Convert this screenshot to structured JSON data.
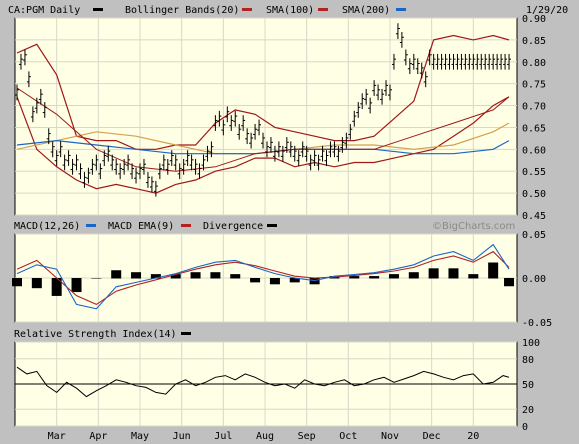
{
  "header": {
    "symbol_label": "CA:PGM Daily",
    "date_label": "1/29/20",
    "legend": [
      {
        "name": "Bollinger Bands(20)",
        "color": "#b22222"
      },
      {
        "name": "SMA(100)",
        "color": "#b22222"
      },
      {
        "name": "SMA(200)",
        "color": "#d4a04a"
      }
    ],
    "legend_extra_swatch": "#1a66c8"
  },
  "watermark": "©BigCharts.com",
  "colors": {
    "panel_bg": "#ffffe6",
    "grid": "#d8d8c8",
    "price": "#000000",
    "bollinger": "#a01818",
    "sma100": "#a01818",
    "sma200": "#d4a04a",
    "blue": "#1a66c8",
    "macd": "#1a66c8",
    "macd_ema": "#b22222",
    "divergence": "#000000",
    "rsi": "#000000"
  },
  "chart_data": [
    {
      "type": "line",
      "panel": "price",
      "x_labels": [
        "Mar",
        "Apr",
        "May",
        "Jun",
        "Jul",
        "Aug",
        "Sep",
        "Oct",
        "Nov",
        "Dec",
        "20"
      ],
      "y_ticks": [
        0.45,
        0.5,
        0.55,
        0.6,
        0.65,
        0.7,
        0.75,
        0.8,
        0.85,
        0.9
      ],
      "ylim": [
        0.45,
        0.9
      ],
      "grid": true,
      "series": [
        {
          "name": "",
          "style": "ohlc",
          "x": [
            0,
            4,
            8,
            12,
            16,
            20,
            24,
            28,
            32,
            36,
            40,
            44,
            48,
            52,
            56,
            60,
            64,
            68,
            72,
            76,
            80,
            84,
            88,
            92,
            96,
            100,
            104,
            108,
            112,
            116,
            120,
            124,
            128,
            132,
            136,
            140,
            144,
            148,
            152,
            156,
            160,
            164,
            168,
            172,
            176,
            180,
            184,
            188,
            192,
            196,
            200,
            204,
            208,
            212,
            216,
            220,
            224,
            228,
            232,
            236,
            240,
            244,
            248,
            252,
            256,
            260,
            264,
            268,
            272,
            276,
            280,
            284,
            288,
            292,
            296,
            300,
            304,
            308,
            312,
            316,
            320,
            324,
            328,
            332,
            336,
            340,
            344,
            348,
            352,
            356,
            360,
            364,
            368,
            372,
            376,
            380,
            384,
            388,
            392,
            396,
            400,
            404,
            408,
            412,
            416,
            420,
            424,
            428,
            432,
            436,
            440,
            444,
            448,
            452,
            456,
            460,
            464,
            468,
            472,
            476,
            480,
            484,
            488,
            492,
            496
          ],
          "values": [
            0.73,
            0.8,
            0.81,
            0.76,
            0.68,
            0.7,
            0.72,
            0.69,
            0.63,
            0.6,
            0.58,
            0.6,
            0.57,
            0.58,
            0.56,
            0.57,
            0.55,
            0.53,
            0.54,
            0.56,
            0.57,
            0.55,
            0.58,
            0.59,
            0.57,
            0.56,
            0.55,
            0.56,
            0.57,
            0.55,
            0.54,
            0.55,
            0.56,
            0.53,
            0.52,
            0.51,
            0.55,
            0.57,
            0.56,
            0.58,
            0.57,
            0.55,
            0.56,
            0.58,
            0.57,
            0.56,
            0.55,
            0.57,
            0.59,
            0.6,
            0.66,
            0.67,
            0.65,
            0.68,
            0.66,
            0.67,
            0.64,
            0.66,
            0.63,
            0.62,
            0.64,
            0.65,
            0.62,
            0.6,
            0.61,
            0.59,
            0.6,
            0.59,
            0.61,
            0.6,
            0.59,
            0.58,
            0.6,
            0.59,
            0.57,
            0.58,
            0.57,
            0.59,
            0.58,
            0.6,
            0.6,
            0.59,
            0.61,
            0.62,
            0.64,
            0.67,
            0.69,
            0.71,
            0.72,
            0.7,
            0.74,
            0.73,
            0.72,
            0.74,
            0.73,
            0.8,
            0.87,
            0.85,
            0.81,
            0.79,
            0.8,
            0.79,
            0.78,
            0.76,
            0.81,
            0.8,
            0.8,
            0.8,
            0.8,
            0.8,
            0.8,
            0.8,
            0.8,
            0.8,
            0.8,
            0.8,
            0.8,
            0.8,
            0.8,
            0.8,
            0.8,
            0.8,
            0.8,
            0.8,
            0.8
          ]
        },
        {
          "name": "Bollinger Bands(20)",
          "role": "upper",
          "x": [
            0,
            20,
            40,
            60,
            80,
            100,
            120,
            140,
            160,
            180,
            200,
            220,
            240,
            260,
            280,
            300,
            320,
            340,
            360,
            380,
            400,
            420,
            440,
            460,
            480,
            496
          ],
          "values": [
            0.82,
            0.84,
            0.77,
            0.63,
            0.62,
            0.62,
            0.6,
            0.6,
            0.61,
            0.61,
            0.66,
            0.69,
            0.68,
            0.65,
            0.64,
            0.63,
            0.62,
            0.62,
            0.63,
            0.67,
            0.71,
            0.85,
            0.86,
            0.85,
            0.86,
            0.85
          ]
        },
        {
          "name": "Bollinger Bands(20)",
          "role": "lower",
          "x": [
            0,
            20,
            40,
            60,
            80,
            100,
            120,
            140,
            160,
            180,
            200,
            220,
            240,
            260,
            280,
            300,
            320,
            340,
            360,
            380,
            400,
            420,
            440,
            460,
            480,
            496
          ],
          "values": [
            0.72,
            0.6,
            0.56,
            0.53,
            0.51,
            0.52,
            0.51,
            0.5,
            0.52,
            0.53,
            0.55,
            0.56,
            0.58,
            0.58,
            0.56,
            0.57,
            0.56,
            0.57,
            0.57,
            0.58,
            0.59,
            0.6,
            0.63,
            0.66,
            0.7,
            0.72
          ]
        },
        {
          "name": "SMA(100)",
          "x": [
            0,
            40,
            80,
            120,
            160,
            200,
            240,
            280,
            320,
            360,
            400,
            440,
            480,
            496
          ],
          "values": [
            0.74,
            0.68,
            0.6,
            0.56,
            0.55,
            0.56,
            0.59,
            0.6,
            0.6,
            0.6,
            0.63,
            0.66,
            0.69,
            0.72
          ]
        },
        {
          "name": "SMA(200)",
          "x": [
            0,
            40,
            80,
            120,
            160,
            200,
            240,
            280,
            320,
            360,
            400,
            440,
            480,
            496
          ],
          "values": [
            0.6,
            0.62,
            0.64,
            0.63,
            0.61,
            0.59,
            0.59,
            0.6,
            0.61,
            0.61,
            0.6,
            0.61,
            0.64,
            0.66
          ]
        },
        {
          "name": "",
          "role": "blue",
          "x": [
            0,
            40,
            80,
            120,
            160,
            200,
            240,
            280,
            320,
            360,
            400,
            440,
            480,
            496
          ],
          "values": [
            0.61,
            0.62,
            0.61,
            0.6,
            0.59,
            0.59,
            0.59,
            0.6,
            0.6,
            0.6,
            0.59,
            0.59,
            0.6,
            0.62
          ]
        }
      ]
    },
    {
      "type": "line",
      "panel": "macd",
      "title": "MACD(12,26)",
      "legend": [
        {
          "name": "MACD EMA(9)",
          "color": "#1a66c8"
        },
        {
          "name": "Divergence",
          "color": "#b22222"
        }
      ],
      "legend_extra_swatch": "#000000",
      "y_ticks": [
        "0.05",
        "0.00",
        "-0.05"
      ],
      "ylim": [
        -0.05,
        0.05
      ],
      "grid": true,
      "series": [
        {
          "name": "",
          "role": "macd",
          "x": [
            0,
            20,
            40,
            60,
            80,
            100,
            120,
            140,
            160,
            180,
            200,
            220,
            240,
            260,
            280,
            300,
            320,
            340,
            360,
            380,
            400,
            420,
            440,
            460,
            480,
            496
          ],
          "values": [
            0.005,
            0.015,
            0.01,
            -0.03,
            -0.035,
            -0.01,
            -0.005,
            0.0,
            0.005,
            0.012,
            0.018,
            0.02,
            0.012,
            0.005,
            0.0,
            -0.003,
            0.002,
            0.004,
            0.006,
            0.01,
            0.015,
            0.025,
            0.03,
            0.02,
            0.038,
            0.01
          ]
        },
        {
          "name": "",
          "role": "ema",
          "x": [
            0,
            20,
            40,
            60,
            80,
            100,
            120,
            140,
            160,
            180,
            200,
            220,
            240,
            260,
            280,
            300,
            320,
            340,
            360,
            380,
            400,
            420,
            440,
            460,
            480,
            496
          ],
          "values": [
            0.01,
            0.02,
            0.0,
            -0.02,
            -0.03,
            -0.015,
            -0.008,
            -0.002,
            0.004,
            0.01,
            0.015,
            0.018,
            0.014,
            0.008,
            0.002,
            0.0,
            0.001,
            0.003,
            0.005,
            0.008,
            0.012,
            0.02,
            0.025,
            0.018,
            0.03,
            0.012
          ]
        },
        {
          "name": "",
          "role": "divergence",
          "x": [
            0,
            20,
            40,
            60,
            80,
            100,
            120,
            140,
            160,
            180,
            200,
            220,
            240,
            260,
            280,
            300,
            320,
            340,
            360,
            380,
            400,
            420,
            440,
            460,
            480,
            496
          ],
          "values": [
            -0.004,
            -0.005,
            -0.009,
            -0.007,
            0.0,
            0.004,
            0.003,
            0.002,
            0.002,
            0.003,
            0.003,
            0.002,
            -0.002,
            -0.003,
            -0.002,
            -0.003,
            0.001,
            0.001,
            0.001,
            0.002,
            0.003,
            0.005,
            0.005,
            0.002,
            0.008,
            -0.004
          ]
        }
      ]
    },
    {
      "type": "line",
      "panel": "rsi",
      "title": "Relative Strength Index(14)",
      "legend_swatch": "#000000",
      "y_ticks": [
        0,
        20,
        50,
        80,
        100
      ],
      "ylim": [
        0,
        100
      ],
      "reference_line": 50,
      "grid": true,
      "series": [
        {
          "name": "",
          "x": [
            0,
            10,
            20,
            30,
            40,
            50,
            60,
            70,
            80,
            90,
            100,
            110,
            120,
            130,
            140,
            150,
            160,
            170,
            180,
            190,
            200,
            210,
            220,
            230,
            240,
            250,
            260,
            270,
            280,
            290,
            300,
            310,
            320,
            330,
            340,
            350,
            360,
            370,
            380,
            390,
            400,
            410,
            420,
            430,
            440,
            450,
            460,
            470,
            480,
            490,
            496
          ],
          "values": [
            70,
            62,
            65,
            48,
            40,
            52,
            45,
            35,
            42,
            48,
            55,
            52,
            48,
            46,
            40,
            38,
            50,
            55,
            48,
            52,
            58,
            60,
            55,
            62,
            58,
            52,
            48,
            50,
            45,
            55,
            50,
            48,
            52,
            55,
            48,
            50,
            55,
            58,
            52,
            56,
            60,
            65,
            62,
            58,
            55,
            60,
            62,
            50,
            52,
            60,
            58
          ]
        }
      ]
    }
  ]
}
